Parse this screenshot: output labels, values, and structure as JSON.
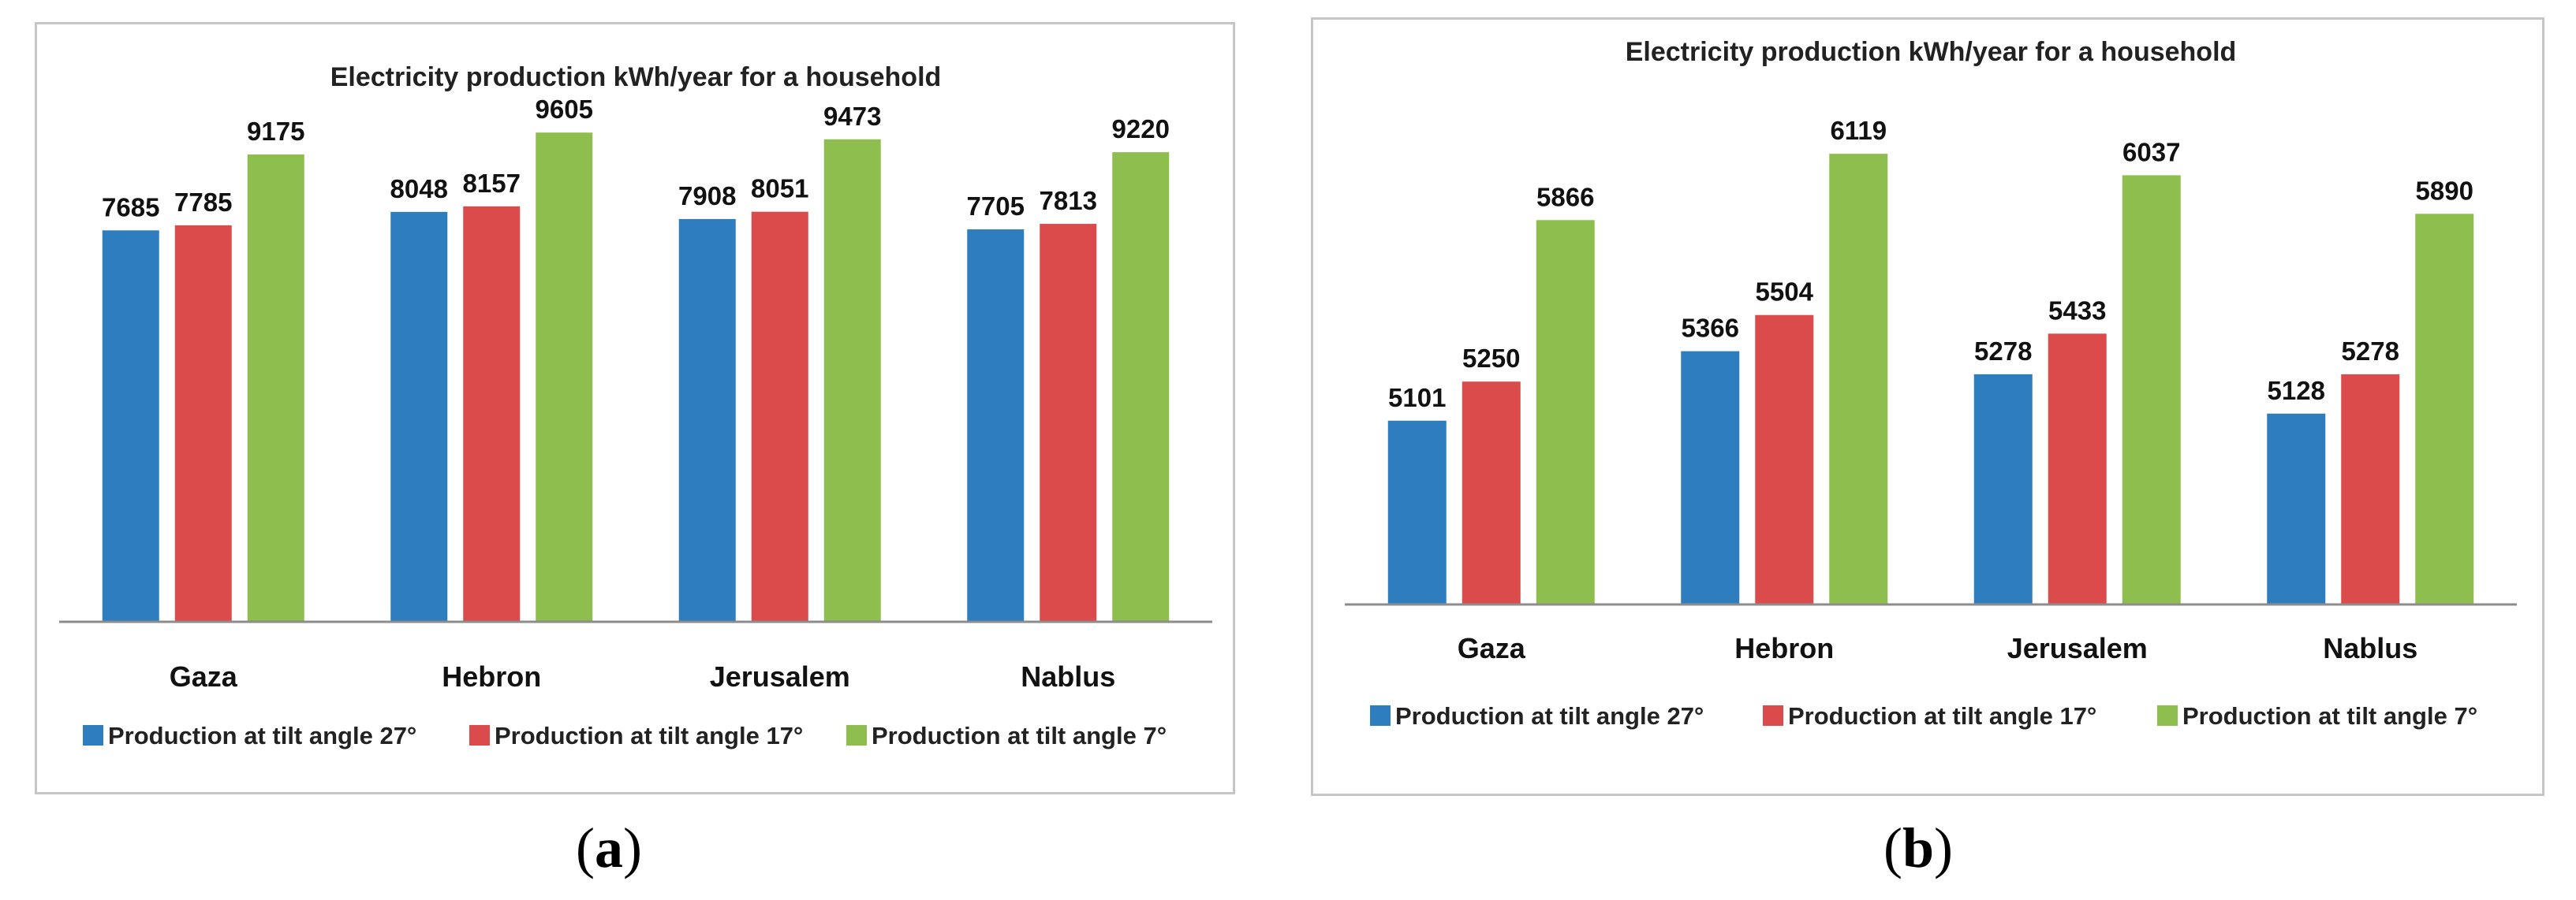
{
  "chart_data": [
    {
      "type": "bar",
      "title": "Electricity production kWh/year for a household",
      "categories": [
        "Gaza",
        "Hebron",
        "Jerusalem",
        "Nablus"
      ],
      "series": [
        {
          "name": "Production at tilt angle 27°",
          "color": "#2e7ebf",
          "values": [
            7685,
            8048,
            7908,
            7705
          ]
        },
        {
          "name": "Production at tilt angle 17°",
          "color": "#dc4b4b",
          "values": [
            7785,
            8157,
            8051,
            7813
          ]
        },
        {
          "name": "Production at tilt angle 7°",
          "color": "#8ebe4e",
          "values": [
            9175,
            9605,
            9473,
            9220
          ]
        }
      ],
      "ylim": [
        0,
        10800
      ],
      "legend": "bottom",
      "grid": false,
      "xlabel": "",
      "ylabel": ""
    },
    {
      "type": "bar",
      "title": "Electricity production kWh/year for a household",
      "categories": [
        "Gaza",
        "Hebron",
        "Jerusalem",
        "Nablus"
      ],
      "series": [
        {
          "name": "Production at tilt angle 27°",
          "color": "#2e7ebf",
          "values": [
            5101,
            5366,
            5278,
            5128
          ]
        },
        {
          "name": "Production at tilt angle 17°",
          "color": "#dc4b4b",
          "values": [
            5250,
            5504,
            5433,
            5278
          ]
        },
        {
          "name": "Production at tilt angle 7°",
          "color": "#8ebe4e",
          "values": [
            5866,
            6119,
            6037,
            5890
          ]
        }
      ],
      "ylim": [
        4400,
        6450
      ],
      "legend": "bottom",
      "grid": false,
      "xlabel": "",
      "ylabel": ""
    }
  ],
  "captions": [
    {
      "open": "(",
      "letter": "a",
      "close": ")"
    },
    {
      "open": "(",
      "letter": "b",
      "close": ")"
    }
  ]
}
